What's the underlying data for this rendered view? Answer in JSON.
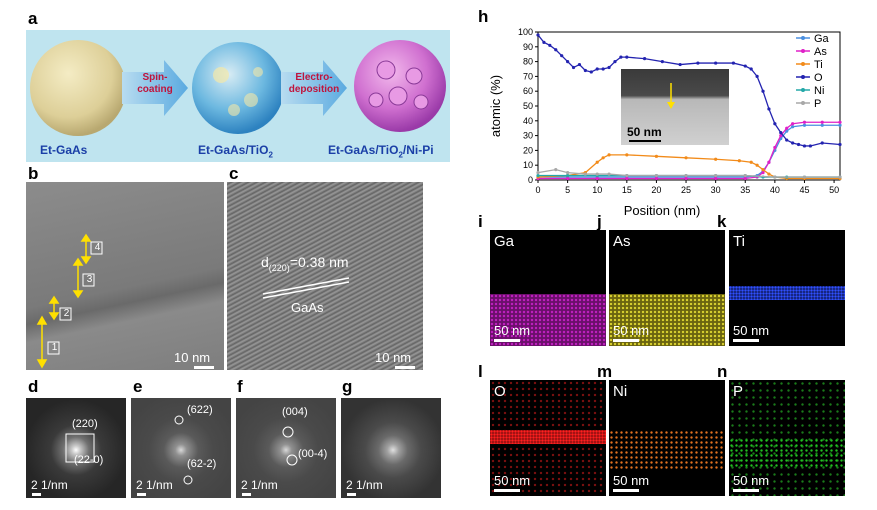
{
  "panels": {
    "a": "a",
    "b": "b",
    "c": "c",
    "d": "d",
    "e": "e",
    "f": "f",
    "g": "g",
    "h": "h",
    "i": "i",
    "j": "j",
    "k": "k",
    "l": "l",
    "m": "m",
    "n": "n"
  },
  "schematic": {
    "arrow1_line1": "Spin-",
    "arrow1_line2": "coating",
    "arrow2_line1": "Electro-",
    "arrow2_line2": "deposition",
    "label1": "Et-GaAs",
    "label2": "Et-GaAs/TiO",
    "label2_sub": "2",
    "label3": "Et-GaAs/TiO",
    "label3_sub": "2",
    "label3_suffix": "/Ni-Pi",
    "bg_color": "#bfe4ef",
    "label_color": "#1b3fa7",
    "arrow_text_color": "#c0143c"
  },
  "tem_b": {
    "markers": [
      "1",
      "2",
      "3",
      "4"
    ],
    "scalebar": "10 nm"
  },
  "tem_c": {
    "d_label": "d",
    "d_sub": "(220)",
    "d_value": "=0.38 nm",
    "material": "GaAs",
    "scalebar": "10 nm"
  },
  "fft": {
    "d": {
      "spots": [
        "(220)",
        "(22-0)"
      ],
      "scalebar": "2 1/nm"
    },
    "e": {
      "spots": [
        "(622)",
        "(62-2)"
      ],
      "scalebar": "2 1/nm"
    },
    "f": {
      "spots": [
        "(004)",
        "(00-4)"
      ],
      "scalebar": "2 1/nm"
    },
    "g": {
      "scalebar": "2 1/nm"
    }
  },
  "chart_data": {
    "type": "line",
    "title": "",
    "xlabel": "Position (nm)",
    "ylabel": "atomic (%)",
    "xlim": [
      0,
      51
    ],
    "ylim": [
      0,
      100
    ],
    "xticks": [
      0,
      5,
      10,
      15,
      20,
      25,
      30,
      35,
      40,
      45,
      50
    ],
    "yticks": [
      0,
      10,
      20,
      30,
      40,
      50,
      60,
      70,
      80,
      90,
      100
    ],
    "legend_position": "top-right",
    "inset_scalebar": "50 nm",
    "series": [
      {
        "name": "Ga",
        "color": "#4a8fe0",
        "x": [
          0,
          5,
          10,
          15,
          20,
          25,
          30,
          35,
          37,
          38,
          39,
          40,
          41,
          42,
          43,
          45,
          48,
          51
        ],
        "y": [
          2,
          2,
          2,
          2,
          2,
          2,
          2,
          2,
          3,
          6,
          12,
          20,
          28,
          33,
          36,
          37,
          37,
          37
        ]
      },
      {
        "name": "As",
        "color": "#e020c8",
        "x": [
          0,
          5,
          10,
          15,
          20,
          25,
          30,
          35,
          37,
          38,
          39,
          40,
          41,
          42,
          43,
          45,
          48,
          51
        ],
        "y": [
          1,
          1,
          1,
          1,
          1,
          1,
          1,
          1,
          2,
          5,
          12,
          22,
          30,
          35,
          38,
          39,
          39,
          39
        ]
      },
      {
        "name": "Ti",
        "color": "#f28b1a",
        "x": [
          0,
          5,
          8,
          10,
          11,
          12,
          15,
          20,
          25,
          30,
          34,
          36,
          37,
          38,
          39,
          40,
          42,
          45,
          51
        ],
        "y": [
          2,
          3,
          5,
          12,
          15,
          17,
          17,
          16,
          15,
          14,
          13,
          12,
          10,
          7,
          4,
          2,
          1,
          1,
          1
        ]
      },
      {
        "name": "O",
        "color": "#2323b0",
        "x": [
          0,
          1,
          2,
          3,
          4,
          5,
          6,
          7,
          8,
          9,
          10,
          11,
          12,
          13,
          14,
          15,
          18,
          21,
          24,
          27,
          30,
          33,
          35,
          36,
          37,
          38,
          39,
          40,
          41,
          42,
          43,
          44,
          45,
          46,
          48,
          51
        ],
        "y": [
          98,
          93,
          91,
          88,
          84,
          80,
          76,
          78,
          74,
          73,
          75,
          75,
          76,
          80,
          83,
          83,
          82,
          80,
          78,
          79,
          79,
          79,
          77,
          75,
          70,
          60,
          48,
          38,
          32,
          27,
          25,
          24,
          23,
          23,
          25,
          24
        ]
      },
      {
        "name": "Ni",
        "color": "#24a8a8",
        "x": [
          0,
          5,
          10,
          15,
          20,
          25,
          30,
          35,
          38,
          40,
          42,
          45,
          51
        ],
        "y": [
          3,
          3,
          3,
          3,
          3,
          3,
          3,
          3,
          2,
          2,
          2,
          2,
          2
        ]
      },
      {
        "name": "P",
        "color": "#a8a8a8",
        "x": [
          0,
          3,
          5,
          8,
          10,
          12,
          15,
          20,
          25,
          30,
          35,
          40,
          45,
          51
        ],
        "y": [
          5,
          7,
          5,
          4,
          4,
          4,
          3,
          3,
          3,
          3,
          3,
          2,
          2,
          2
        ]
      }
    ]
  },
  "maps": {
    "i": {
      "element": "Ga",
      "scalebar": "50 nm",
      "color": "#c020c0"
    },
    "j": {
      "element": "As",
      "scalebar": "50 nm",
      "color": "#c8c020"
    },
    "k": {
      "element": "Ti",
      "scalebar": "50 nm",
      "color": "#2040e8"
    },
    "l": {
      "element": "O",
      "scalebar": "50 nm",
      "color": "#e02020"
    },
    "m": {
      "element": "Ni",
      "scalebar": "50 nm",
      "color": "#e07020"
    },
    "n": {
      "element": "P",
      "scalebar": "50 nm",
      "color": "#20b020"
    }
  }
}
